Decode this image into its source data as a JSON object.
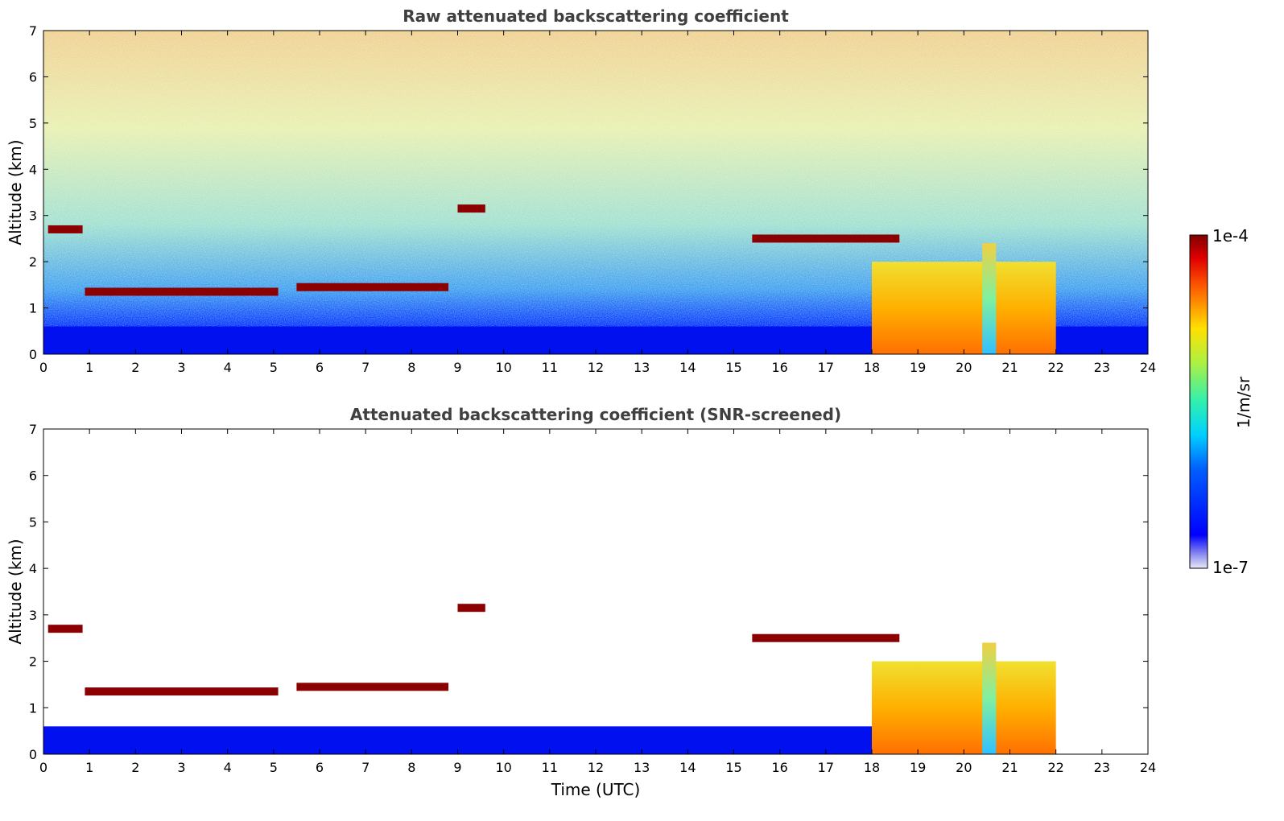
{
  "chart_data": [
    {
      "type": "heatmap",
      "title": "Raw attenuated backscattering coefficient",
      "xlabel": "",
      "ylabel": "Altitude (km)",
      "xlim": [
        0,
        24
      ],
      "ylim": [
        0,
        7
      ],
      "x_ticks": [
        "0",
        "1",
        "2",
        "3",
        "4",
        "5",
        "6",
        "7",
        "8",
        "9",
        "10",
        "11",
        "12",
        "13",
        "14",
        "15",
        "16",
        "17",
        "18",
        "19",
        "20",
        "21",
        "22",
        "23",
        "24"
      ],
      "y_ticks": [
        "0",
        "1",
        "2",
        "3",
        "4",
        "5",
        "6",
        "7"
      ],
      "grid": false,
      "colormap": "jet",
      "features": [
        {
          "kind": "cloud_layer",
          "x": [
            0.1,
            0.85
          ],
          "altitude_km": 2.7
        },
        {
          "kind": "cloud_layer",
          "x": [
            0.9,
            5.1
          ],
          "altitude_km": 1.35
        },
        {
          "kind": "cloud_layer",
          "x": [
            5.5,
            8.8
          ],
          "altitude_km": 1.45
        },
        {
          "kind": "cloud_layer",
          "x": [
            9.0,
            9.6
          ],
          "altitude_km": 3.15
        },
        {
          "kind": "cloud_layer",
          "x": [
            15.4,
            18.6
          ],
          "altitude_km": 2.5
        },
        {
          "kind": "boundary_layer",
          "x": [
            0,
            24
          ],
          "altitude_km": 0.6
        },
        {
          "kind": "aerosol_plume",
          "x": [
            18.0,
            22.0
          ],
          "top_km": 2.0
        },
        {
          "kind": "aerosol_column",
          "x": [
            20.4,
            20.7
          ],
          "top_km": 2.4
        }
      ]
    },
    {
      "type": "heatmap",
      "title": "Attenuated backscattering coefficient (SNR-screened)",
      "xlabel": "Time (UTC)",
      "ylabel": "Altitude (km)",
      "xlim": [
        0,
        24
      ],
      "ylim": [
        0,
        7
      ],
      "x_ticks": [
        "0",
        "1",
        "2",
        "3",
        "4",
        "5",
        "6",
        "7",
        "8",
        "9",
        "10",
        "11",
        "12",
        "13",
        "14",
        "15",
        "16",
        "17",
        "18",
        "19",
        "20",
        "21",
        "22",
        "23",
        "24"
      ],
      "y_ticks": [
        "0",
        "1",
        "2",
        "3",
        "4",
        "5",
        "6",
        "7"
      ],
      "grid": false,
      "colormap": "jet",
      "features": [
        {
          "kind": "cloud_layer",
          "x": [
            0.1,
            0.85
          ],
          "altitude_km": 2.7
        },
        {
          "kind": "cloud_layer",
          "x": [
            0.9,
            5.1
          ],
          "altitude_km": 1.35
        },
        {
          "kind": "cloud_layer",
          "x": [
            5.5,
            8.8
          ],
          "altitude_km": 1.45
        },
        {
          "kind": "cloud_layer",
          "x": [
            9.0,
            9.6
          ],
          "altitude_km": 3.15
        },
        {
          "kind": "cloud_layer",
          "x": [
            15.4,
            18.6
          ],
          "altitude_km": 2.5
        },
        {
          "kind": "boundary_layer",
          "x": [
            0,
            18
          ],
          "altitude_km": 0.6
        },
        {
          "kind": "aerosol_plume",
          "x": [
            18.0,
            22.0
          ],
          "top_km": 2.0
        },
        {
          "kind": "aerosol_column",
          "x": [
            20.4,
            20.7
          ],
          "top_km": 2.4
        }
      ]
    }
  ],
  "colorbar": {
    "max_label": "1e-4",
    "min_label": "1e-7",
    "unit_label": "1/m/sr",
    "scale": "log"
  }
}
